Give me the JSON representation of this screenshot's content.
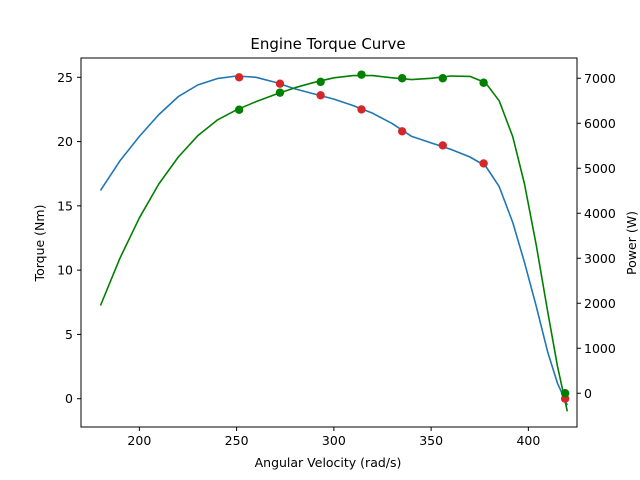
{
  "chart_data": {
    "type": "line",
    "title": "Engine Torque Curve",
    "xlabel": "Angular Velocity (rad/s)",
    "ylabel": "Torque (Nm)",
    "y2label": "Power (W)",
    "xlim": [
      170,
      425
    ],
    "ylim": [
      -2.2,
      26.5
    ],
    "y2lim": [
      -750,
      7450
    ],
    "x_ticks": [
      200,
      250,
      300,
      350,
      400
    ],
    "y_ticks": [
      0,
      5,
      10,
      15,
      20,
      25
    ],
    "y2_ticks": [
      0,
      1000,
      2000,
      3000,
      4000,
      5000,
      6000,
      7000
    ],
    "grid": false,
    "torque_points": {
      "color": "#d62728",
      "x": [
        251.3,
        272.3,
        293.2,
        314.2,
        335.1,
        356.0,
        377.0,
        418.9
      ],
      "y": [
        25.0,
        24.5,
        23.6,
        22.5,
        20.8,
        19.7,
        18.3,
        0.0
      ]
    },
    "torque_curve": {
      "color": "#1f77b4",
      "x": [
        180,
        190,
        200,
        210,
        220,
        230,
        240,
        250,
        260,
        270,
        280,
        290,
        300,
        310,
        320,
        330,
        340,
        350,
        360,
        370,
        378,
        385,
        392,
        398,
        404,
        410,
        415,
        420
      ],
      "y": [
        16.2,
        18.5,
        20.4,
        22.1,
        23.5,
        24.4,
        24.9,
        25.1,
        25.0,
        24.6,
        24.1,
        23.7,
        23.3,
        22.8,
        22.2,
        21.4,
        20.4,
        19.9,
        19.4,
        18.8,
        18.1,
        16.5,
        13.7,
        10.6,
        7.2,
        3.6,
        1.2,
        -0.5
      ]
    },
    "power_points": {
      "color": "#008000",
      "x": [
        251.3,
        272.3,
        293.2,
        314.2,
        335.1,
        356.0,
        377.0,
        418.9
      ],
      "y": [
        6300,
        6680,
        6920,
        7080,
        7000,
        7000,
        6900,
        0
      ]
    },
    "power_curve": {
      "color": "#008000",
      "x": [
        180,
        190,
        200,
        210,
        220,
        230,
        240,
        250,
        260,
        270,
        280,
        290,
        300,
        310,
        320,
        330,
        340,
        350,
        360,
        370,
        378,
        385,
        392,
        398,
        404,
        410,
        415,
        420
      ],
      "y": [
        1950,
        3000,
        3900,
        4650,
        5250,
        5720,
        6070,
        6300,
        6480,
        6640,
        6790,
        6910,
        7010,
        7060,
        7060,
        7010,
        6970,
        7000,
        7050,
        7040,
        6900,
        6500,
        5700,
        4650,
        3300,
        1800,
        600,
        -400
      ]
    }
  }
}
